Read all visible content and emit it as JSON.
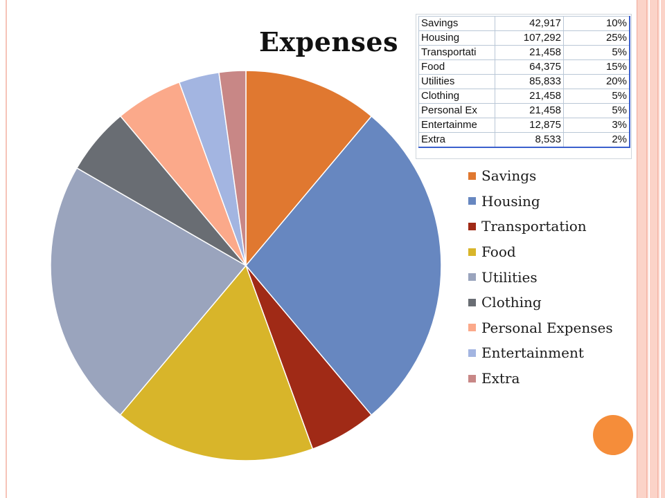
{
  "chart_data": {
    "type": "pie",
    "title": "Expenses",
    "categories": [
      "Savings",
      "Housing",
      "Transportation",
      "Food",
      "Utilities",
      "Clothing",
      "Personal Expenses",
      "Entertainment",
      "Extra"
    ],
    "values": [
      42917,
      107292,
      21458,
      64375,
      85833,
      21458,
      21458,
      12875,
      8533
    ],
    "colors": [
      "#e07830",
      "#6787c0",
      "#a02a16",
      "#d8b52a",
      "#9aa4bd",
      "#696d73",
      "#fba98a",
      "#a3b5e1",
      "#c88786"
    ],
    "legend_position": "right",
    "start_angle_deg": 0,
    "direction": "clockwise"
  },
  "table": {
    "rows": [
      {
        "label": "Savings",
        "amount": "42,917",
        "percent": "10%"
      },
      {
        "label": "Housing",
        "amount": "107,292",
        "percent": "25%"
      },
      {
        "label": "Transportati",
        "amount": "21,458",
        "percent": "5%"
      },
      {
        "label": "Food",
        "amount": "64,375",
        "percent": "15%"
      },
      {
        "label": "Utilities",
        "amount": "85,833",
        "percent": "20%"
      },
      {
        "label": "Clothing",
        "amount": "21,458",
        "percent": "5%"
      },
      {
        "label": "Personal Ex",
        "amount": "21,458",
        "percent": "5%"
      },
      {
        "label": "Entertainme",
        "amount": "12,875",
        "percent": "3%"
      },
      {
        "label": "Extra",
        "amount": "8,533",
        "percent": "2%"
      }
    ]
  },
  "theme": {
    "accent_dot": "#f58d3a",
    "border_pink": "#fbd3c8"
  }
}
